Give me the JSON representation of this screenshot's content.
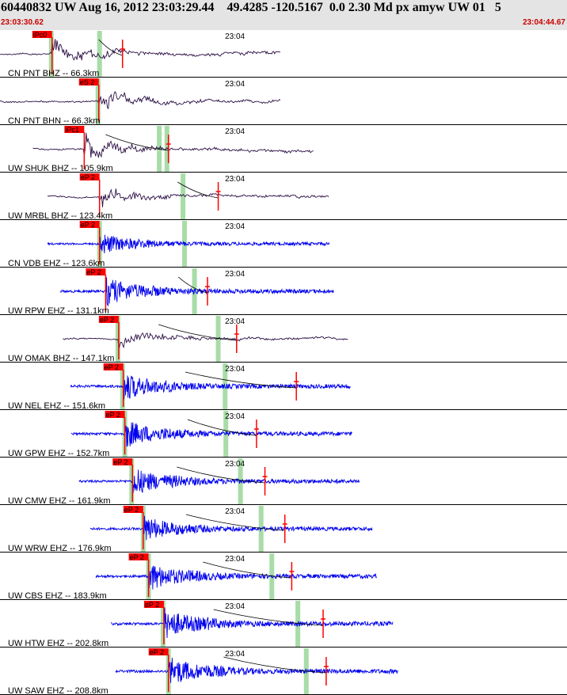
{
  "header": {
    "title": "60440832 UW Aug 16, 2012 23:03:29.44    49.4285 -120.5167  0.0 2.30 Md px amyw UW 01   5",
    "time_start": "23:03:30.62",
    "time_end": "23:04:44.67"
  },
  "colors": {
    "background": "#ffffff",
    "header_bg": "#e4e4e4",
    "broadband_trace": "#2b0f45",
    "short_period_trace": "#0000ee",
    "pick": "#ff0000",
    "coda_window": "#a8dca8",
    "separator": "#000000"
  },
  "chart_data": {
    "type": "line",
    "title": "60440832 UW Aug 16, 2012 23:03:29.44    49.4285 -120.5167  0.0 2.30 Md px amyw UW 01   5",
    "x_unit": "seconds",
    "xlim": [
      0,
      74.05
    ],
    "minute_marker": {
      "label": "23:04",
      "t": 29.38
    },
    "traces": [
      {
        "label": "CN PNT BHZ -- 66.3km",
        "kind": "broadband",
        "start": 0.0,
        "end": 36.7,
        "phase": "iPc0",
        "pick_t": 6.8,
        "windows": [
          6.7,
          13.0
        ],
        "tick_t": 16.0,
        "amp": 14,
        "curve_from": 12.9
      },
      {
        "label": "CN PNT BHN -- 66.3km",
        "kind": "broadband",
        "start": 0.0,
        "end": 36.7,
        "phase": "eS 2",
        "pick_t": 12.9,
        "windows": [
          12.8
        ],
        "tick_t": null,
        "amp": 12,
        "curve_from": null
      },
      {
        "label": "UW SHUK BHZ -- 105.9km",
        "kind": "broadband",
        "start": 4.3,
        "end": 41.0,
        "phase": "iPc1",
        "pick_t": 11.0,
        "windows": [
          20.8,
          21.8
        ],
        "tick_t": 22.0,
        "amp": 13,
        "curve_from": 13.8
      },
      {
        "label": "UW MRBL BHZ -- 123.4km",
        "kind": "broadband",
        "start": 6.2,
        "end": 43.0,
        "phase": "eP 2",
        "pick_t": 13.0,
        "windows": [
          23.9
        ],
        "tick_t": 28.5,
        "amp": 11,
        "curve_from": 23.2
      },
      {
        "label": "CN VDB EHZ -- 123.6km",
        "kind": "short",
        "start": 6.2,
        "end": 43.0,
        "phase": "eP 2",
        "pick_t": 13.0,
        "windows": [
          13.0,
          24.1
        ],
        "tick_t": null,
        "amp": 11,
        "curve_from": null
      },
      {
        "label": "UW RPW EHZ -- 131.1km",
        "kind": "short",
        "start": 7.9,
        "end": 43.6,
        "phase": "eP 2",
        "pick_t": 13.8,
        "windows": [
          25.4
        ],
        "tick_t": 27.1,
        "amp": 14,
        "curve_from": 23.3
      },
      {
        "label": "UW OMAK BHZ -- 147.1km",
        "kind": "broadband",
        "start": 8.2,
        "end": 45.5,
        "phase": "eP 2",
        "pick_t": 15.5,
        "windows": [
          15.4,
          28.5
        ],
        "tick_t": 30.9,
        "amp": 10,
        "curve_from": 20.7
      },
      {
        "label": "UW NEL EHZ -- 151.6km",
        "kind": "short",
        "start": 9.2,
        "end": 45.8,
        "phase": "eP 2",
        "pick_t": 16.1,
        "windows": [
          16.0,
          29.4
        ],
        "tick_t": 38.7,
        "amp": 14,
        "curve_from": 24.2
      },
      {
        "label": "UW GPW EHZ -- 152.7km",
        "kind": "short",
        "start": 9.3,
        "end": 46.0,
        "phase": "eP 2",
        "pick_t": 16.3,
        "windows": [
          16.3,
          29.5
        ],
        "tick_t": 33.5,
        "amp": 14,
        "curve_from": 24.5
      },
      {
        "label": "UW CMW EHZ -- 161.9km",
        "kind": "short",
        "start": 10.3,
        "end": 47.0,
        "phase": "eP 2",
        "pick_t": 17.3,
        "windows": [
          17.2,
          31.4
        ],
        "tick_t": 34.6,
        "amp": 14,
        "curve_from": 23.1
      },
      {
        "label": "UW WRW EHZ -- 176.9km",
        "kind": "short",
        "start": 11.8,
        "end": 48.6,
        "phase": "eP 2",
        "pick_t": 18.7,
        "windows": [
          18.7,
          34.1
        ],
        "tick_t": 37.2,
        "amp": 13,
        "curve_from": 24.3
      },
      {
        "label": "UW CBS EHZ -- 183.9km",
        "kind": "short",
        "start": 12.5,
        "end": 49.2,
        "phase": "eP 2",
        "pick_t": 19.4,
        "windows": [
          19.4,
          35.5
        ],
        "tick_t": 38.1,
        "amp": 14,
        "curve_from": 26.5
      },
      {
        "label": "UW HTW EHZ -- 202.8km",
        "kind": "short",
        "start": 14.5,
        "end": 51.3,
        "phase": "eP 2",
        "pick_t": 21.4,
        "windows": [
          21.3,
          38.9
        ],
        "tick_t": 42.2,
        "amp": 15,
        "curve_from": 27.9
      },
      {
        "label": "UW SAW EHZ -- 208.8km",
        "kind": "short",
        "start": 15.1,
        "end": 52.0,
        "phase": "eP 2",
        "pick_t": 22.0,
        "windows": [
          22.0,
          40.0
        ],
        "tick_t": 42.6,
        "amp": 15,
        "curve_from": 29.2
      }
    ]
  }
}
